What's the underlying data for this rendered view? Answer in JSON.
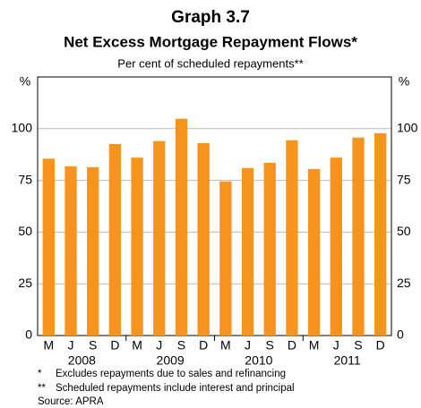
{
  "chart_data": {
    "type": "bar",
    "title": "Graph 3.7",
    "subtitle": "Net Excess Mortgage Repayment Flows*",
    "y_label": "Per cent of scheduled repayments**",
    "y_unit": "%",
    "categories": [
      "M",
      "J",
      "S",
      "D",
      "M",
      "J",
      "S",
      "D",
      "M",
      "J",
      "S",
      "D",
      "M",
      "J",
      "S",
      "D"
    ],
    "x_groups": [
      "2008",
      "2009",
      "2010",
      "2011"
    ],
    "values": [
      85.5,
      81.8,
      81.4,
      92.6,
      86,
      94,
      104.8,
      93,
      74.5,
      81,
      83.5,
      94.4,
      80.5,
      86,
      95.7,
      97.8
    ],
    "color": "#f7941d",
    "ylim": [
      0,
      125
    ],
    "yticks": [
      0,
      25,
      50,
      75,
      100
    ],
    "grid": true,
    "notes": [
      {
        "mark": "*",
        "text": "Excludes repayments due to sales and refinancing"
      },
      {
        "mark": "**",
        "text": "Scheduled repayments include interest and principal"
      }
    ],
    "source": "Source: APRA"
  }
}
